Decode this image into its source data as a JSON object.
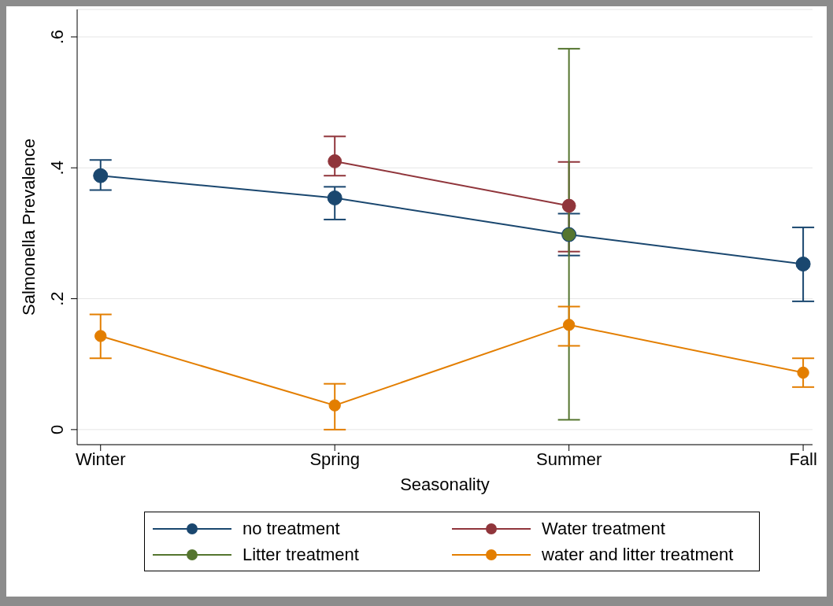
{
  "chart_data": {
    "type": "line",
    "xlabel": "Seasonality",
    "ylabel": "Salmonella Prevalence",
    "categories": [
      "Winter",
      "Spring",
      "Summer",
      "Fall"
    ],
    "series": [
      {
        "name": "no treatment",
        "color": "#1a476f",
        "values": [
          0.388,
          0.354,
          0.298,
          0.253
        ],
        "errors": [
          [
            0.366,
            0.412
          ],
          [
            0.321,
            0.371
          ],
          [
            0.266,
            0.33
          ],
          [
            0.196,
            0.309
          ]
        ]
      },
      {
        "name": "Water treatment",
        "color": "#90353b",
        "values": [
          null,
          0.41,
          0.342,
          null
        ],
        "errors": [
          null,
          [
            0.388,
            0.448
          ],
          [
            0.272,
            0.409
          ],
          null
        ]
      },
      {
        "name": "Litter treatment",
        "color": "#55752f",
        "values": [
          null,
          null,
          0.298,
          null
        ],
        "errors": [
          null,
          null,
          [
            0.015,
            0.582
          ],
          null
        ]
      },
      {
        "name": "water and litter treatment",
        "color": "#e37e00",
        "values": [
          0.143,
          0.037,
          0.16,
          0.087
        ],
        "errors": [
          [
            0.109,
            0.176
          ],
          [
            0,
            0.07
          ],
          [
            0.128,
            0.188
          ],
          [
            0.065,
            0.109
          ]
        ]
      }
    ],
    "ylim": [
      -0.023,
      0.642
    ],
    "yticks": [
      {
        "value": 0,
        "label": "0"
      },
      {
        "value": 0.2,
        "label": ".2"
      },
      {
        "value": 0.4,
        "label": ".4"
      },
      {
        "value": 0.6,
        "label": ".6"
      }
    ],
    "grid": "y",
    "legend": "bottom",
    "marker": "circle",
    "line_style": "solid"
  }
}
